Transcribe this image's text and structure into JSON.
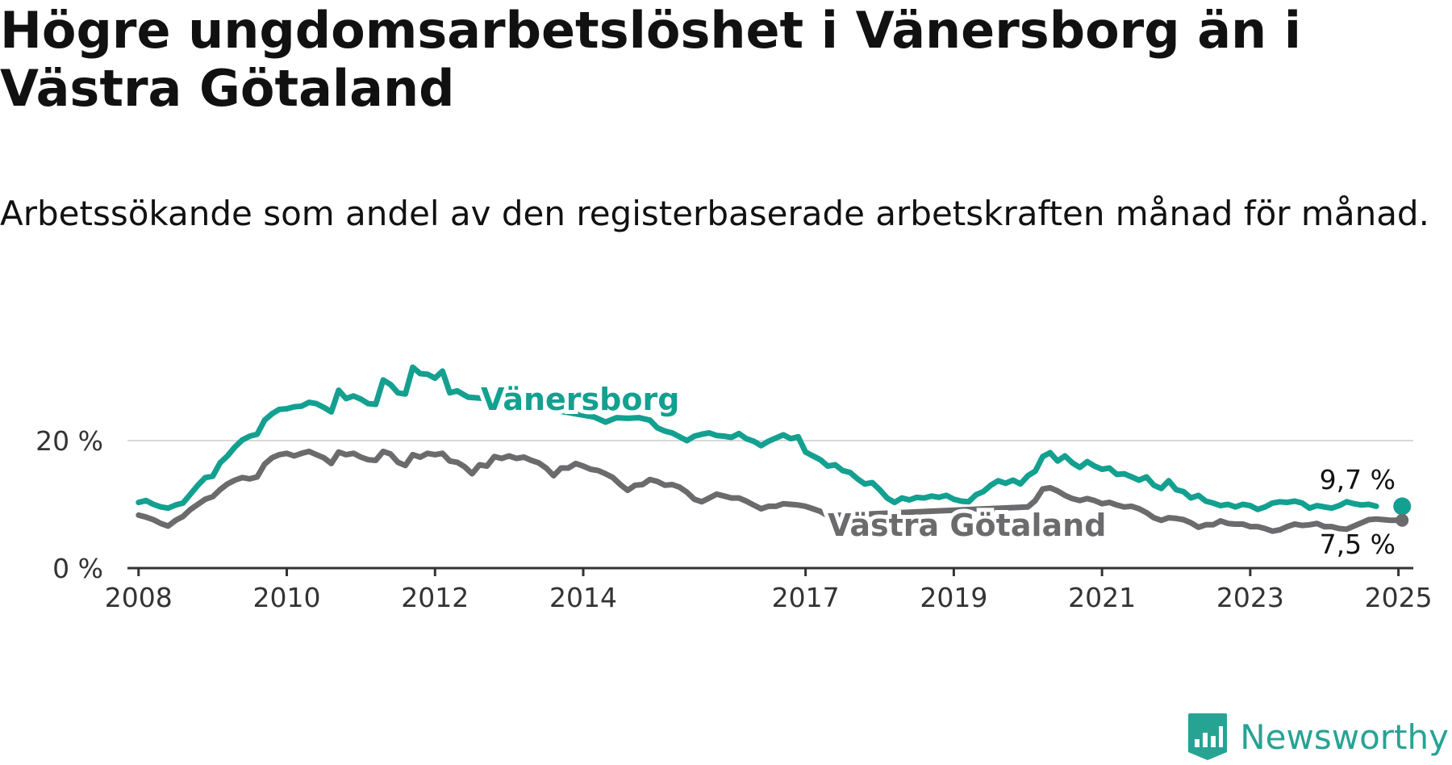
{
  "header": {
    "title": "Högre ungdomsarbetslöshet i Vänersborg än i Västra Götaland",
    "subtitle": "Arbetssökande som andel av den registerbaserade arbetskraften månad för månad."
  },
  "brand": {
    "name": "Newsworthy",
    "icon": "bar-chart-logo-icon",
    "color": "#27a394"
  },
  "chart_data": {
    "type": "line",
    "x_axis": {
      "ticks": [
        "2008",
        "2010",
        "2012",
        "2014",
        "2017",
        "2019",
        "2021",
        "2023",
        "2025"
      ],
      "range": [
        2007.85,
        2025.2
      ]
    },
    "y_axis": {
      "ticks": [
        "0 %",
        "20 %"
      ],
      "tick_values": [
        0,
        20
      ],
      "ylim": [
        0,
        33
      ],
      "grid": true
    },
    "series": [
      {
        "name": "Vänersborg",
        "color": "#13a090",
        "end_label": "9,7 %",
        "points": [
          [
            2008.0,
            10.3
          ],
          [
            2008.1,
            10.6
          ],
          [
            2008.2,
            10.0
          ],
          [
            2008.3,
            9.6
          ],
          [
            2008.4,
            9.4
          ],
          [
            2008.5,
            9.9
          ],
          [
            2008.6,
            10.2
          ],
          [
            2008.7,
            11.6
          ],
          [
            2008.8,
            13.0
          ],
          [
            2008.9,
            14.2
          ],
          [
            2009.0,
            14.4
          ],
          [
            2009.1,
            16.5
          ],
          [
            2009.2,
            17.6
          ],
          [
            2009.3,
            19.0
          ],
          [
            2009.4,
            20.1
          ],
          [
            2009.5,
            20.7
          ],
          [
            2009.6,
            21.0
          ],
          [
            2009.7,
            23.2
          ],
          [
            2009.8,
            24.2
          ],
          [
            2009.9,
            24.9
          ],
          [
            2010.0,
            25.0
          ],
          [
            2010.1,
            25.3
          ],
          [
            2010.2,
            25.4
          ],
          [
            2010.3,
            26.0
          ],
          [
            2010.4,
            25.8
          ],
          [
            2010.5,
            25.2
          ],
          [
            2010.6,
            24.5
          ],
          [
            2010.7,
            27.9
          ],
          [
            2010.8,
            26.6
          ],
          [
            2010.9,
            27.0
          ],
          [
            2011.0,
            26.5
          ],
          [
            2011.1,
            25.8
          ],
          [
            2011.2,
            25.7
          ],
          [
            2011.3,
            29.5
          ],
          [
            2011.4,
            28.8
          ],
          [
            2011.5,
            27.5
          ],
          [
            2011.6,
            27.3
          ],
          [
            2011.7,
            31.5
          ],
          [
            2011.8,
            30.5
          ],
          [
            2011.9,
            30.4
          ],
          [
            2012.0,
            29.8
          ],
          [
            2012.1,
            30.9
          ],
          [
            2012.2,
            27.5
          ],
          [
            2012.3,
            27.8
          ],
          [
            2012.45,
            26.8
          ],
          [
            2012.8,
            26.5
          ],
          [
            2013.5,
            25.0
          ],
          [
            2014.0,
            24.0
          ],
          [
            2014.15,
            23.7
          ],
          [
            2014.3,
            22.9
          ],
          [
            2014.45,
            23.6
          ],
          [
            2014.6,
            23.5
          ],
          [
            2014.75,
            23.6
          ],
          [
            2014.9,
            23.2
          ],
          [
            2015.0,
            22.0
          ],
          [
            2015.1,
            21.5
          ],
          [
            2015.2,
            21.2
          ],
          [
            2015.3,
            20.6
          ],
          [
            2015.4,
            20.0
          ],
          [
            2015.5,
            20.7
          ],
          [
            2015.6,
            21.0
          ],
          [
            2015.7,
            21.2
          ],
          [
            2015.8,
            20.8
          ],
          [
            2015.9,
            20.7
          ],
          [
            2016.0,
            20.5
          ],
          [
            2016.1,
            21.1
          ],
          [
            2016.2,
            20.3
          ],
          [
            2016.3,
            19.9
          ],
          [
            2016.4,
            19.2
          ],
          [
            2016.5,
            19.9
          ],
          [
            2016.6,
            20.4
          ],
          [
            2016.7,
            20.9
          ],
          [
            2016.8,
            20.3
          ],
          [
            2016.9,
            20.6
          ],
          [
            2017.0,
            18.2
          ],
          [
            2017.1,
            17.6
          ],
          [
            2017.2,
            17.0
          ],
          [
            2017.3,
            16.0
          ],
          [
            2017.4,
            16.2
          ],
          [
            2017.5,
            15.3
          ],
          [
            2017.6,
            15.0
          ],
          [
            2017.7,
            14.0
          ],
          [
            2017.8,
            13.2
          ],
          [
            2017.9,
            13.4
          ],
          [
            2018.0,
            12.3
          ],
          [
            2018.1,
            11.0
          ],
          [
            2018.2,
            10.3
          ],
          [
            2018.3,
            11.0
          ],
          [
            2018.4,
            10.7
          ],
          [
            2018.5,
            11.1
          ],
          [
            2018.6,
            11.0
          ],
          [
            2018.7,
            11.3
          ],
          [
            2018.8,
            11.1
          ],
          [
            2018.9,
            11.4
          ],
          [
            2019.0,
            10.8
          ],
          [
            2019.1,
            10.5
          ],
          [
            2019.2,
            10.4
          ],
          [
            2019.3,
            11.5
          ],
          [
            2019.4,
            12.0
          ],
          [
            2019.5,
            13.0
          ],
          [
            2019.6,
            13.7
          ],
          [
            2019.7,
            13.3
          ],
          [
            2019.8,
            13.8
          ],
          [
            2019.9,
            13.2
          ],
          [
            2020.0,
            14.5
          ],
          [
            2020.1,
            15.2
          ],
          [
            2020.2,
            17.5
          ],
          [
            2020.3,
            18.1
          ],
          [
            2020.4,
            16.8
          ],
          [
            2020.5,
            17.6
          ],
          [
            2020.6,
            16.5
          ],
          [
            2020.7,
            15.8
          ],
          [
            2020.8,
            16.7
          ],
          [
            2020.9,
            16.0
          ],
          [
            2021.0,
            15.5
          ],
          [
            2021.1,
            15.7
          ],
          [
            2021.2,
            14.7
          ],
          [
            2021.3,
            14.8
          ],
          [
            2021.4,
            14.3
          ],
          [
            2021.5,
            13.8
          ],
          [
            2021.6,
            14.3
          ],
          [
            2021.7,
            13.0
          ],
          [
            2021.8,
            12.5
          ],
          [
            2021.9,
            13.7
          ],
          [
            2022.0,
            12.3
          ],
          [
            2022.1,
            12.0
          ],
          [
            2022.2,
            11.0
          ],
          [
            2022.3,
            11.4
          ],
          [
            2022.4,
            10.5
          ],
          [
            2022.5,
            10.2
          ],
          [
            2022.6,
            9.8
          ],
          [
            2022.7,
            10.0
          ],
          [
            2022.8,
            9.6
          ],
          [
            2022.9,
            10.0
          ],
          [
            2023.0,
            9.8
          ],
          [
            2023.1,
            9.2
          ],
          [
            2023.2,
            9.6
          ],
          [
            2023.3,
            10.2
          ],
          [
            2023.4,
            10.4
          ],
          [
            2023.5,
            10.3
          ],
          [
            2023.6,
            10.5
          ],
          [
            2023.7,
            10.2
          ],
          [
            2023.8,
            9.4
          ],
          [
            2023.9,
            9.8
          ],
          [
            2024.0,
            9.6
          ],
          [
            2024.1,
            9.4
          ],
          [
            2024.2,
            9.8
          ],
          [
            2024.3,
            10.4
          ],
          [
            2024.4,
            10.1
          ],
          [
            2024.5,
            9.9
          ],
          [
            2024.6,
            10.0
          ],
          [
            2024.7,
            9.7
          ]
        ]
      },
      {
        "name": "Västra Götaland",
        "color": "#6b6b6d",
        "end_label": "7,5 %",
        "points": [
          [
            2008.0,
            8.3
          ],
          [
            2008.1,
            8.0
          ],
          [
            2008.2,
            7.6
          ],
          [
            2008.3,
            7.0
          ],
          [
            2008.4,
            6.6
          ],
          [
            2008.5,
            7.5
          ],
          [
            2008.6,
            8.1
          ],
          [
            2008.7,
            9.2
          ],
          [
            2008.8,
            10.0
          ],
          [
            2008.9,
            10.8
          ],
          [
            2009.0,
            11.2
          ],
          [
            2009.1,
            12.3
          ],
          [
            2009.2,
            13.2
          ],
          [
            2009.3,
            13.8
          ],
          [
            2009.4,
            14.2
          ],
          [
            2009.5,
            14.0
          ],
          [
            2009.6,
            14.3
          ],
          [
            2009.7,
            16.3
          ],
          [
            2009.8,
            17.3
          ],
          [
            2009.9,
            17.8
          ],
          [
            2010.0,
            18.0
          ],
          [
            2010.1,
            17.6
          ],
          [
            2010.2,
            18.0
          ],
          [
            2010.3,
            18.3
          ],
          [
            2010.4,
            17.8
          ],
          [
            2010.5,
            17.3
          ],
          [
            2010.6,
            16.4
          ],
          [
            2010.7,
            18.2
          ],
          [
            2010.8,
            17.8
          ],
          [
            2010.9,
            18.0
          ],
          [
            2011.0,
            17.4
          ],
          [
            2011.1,
            17.0
          ],
          [
            2011.2,
            16.9
          ],
          [
            2011.3,
            18.3
          ],
          [
            2011.4,
            17.9
          ],
          [
            2011.5,
            16.6
          ],
          [
            2011.6,
            16.1
          ],
          [
            2011.7,
            17.8
          ],
          [
            2011.8,
            17.4
          ],
          [
            2011.9,
            18.0
          ],
          [
            2012.0,
            17.8
          ],
          [
            2012.1,
            18.0
          ],
          [
            2012.2,
            16.8
          ],
          [
            2012.3,
            16.6
          ],
          [
            2012.4,
            15.9
          ],
          [
            2012.5,
            14.8
          ],
          [
            2012.6,
            16.2
          ],
          [
            2012.7,
            16.0
          ],
          [
            2012.8,
            17.5
          ],
          [
            2012.9,
            17.2
          ],
          [
            2013.0,
            17.6
          ],
          [
            2013.1,
            17.2
          ],
          [
            2013.2,
            17.4
          ],
          [
            2013.3,
            16.9
          ],
          [
            2013.4,
            16.5
          ],
          [
            2013.5,
            15.7
          ],
          [
            2013.6,
            14.5
          ],
          [
            2013.7,
            15.7
          ],
          [
            2013.8,
            15.7
          ],
          [
            2013.9,
            16.4
          ],
          [
            2014.0,
            16.0
          ],
          [
            2014.1,
            15.5
          ],
          [
            2014.2,
            15.3
          ],
          [
            2014.3,
            14.8
          ],
          [
            2014.4,
            14.2
          ],
          [
            2014.5,
            13.1
          ],
          [
            2014.6,
            12.2
          ],
          [
            2014.7,
            13.0
          ],
          [
            2014.8,
            13.1
          ],
          [
            2014.9,
            13.9
          ],
          [
            2015.0,
            13.6
          ],
          [
            2015.1,
            13.0
          ],
          [
            2015.2,
            13.1
          ],
          [
            2015.3,
            12.7
          ],
          [
            2015.4,
            11.9
          ],
          [
            2015.5,
            10.8
          ],
          [
            2015.6,
            10.4
          ],
          [
            2015.7,
            11.0
          ],
          [
            2015.8,
            11.6
          ],
          [
            2015.9,
            11.3
          ],
          [
            2016.0,
            11.0
          ],
          [
            2016.1,
            11.0
          ],
          [
            2016.2,
            10.5
          ],
          [
            2016.3,
            9.9
          ],
          [
            2016.4,
            9.3
          ],
          [
            2016.5,
            9.7
          ],
          [
            2016.6,
            9.7
          ],
          [
            2016.7,
            10.1
          ],
          [
            2016.8,
            10.0
          ],
          [
            2016.9,
            9.9
          ],
          [
            2017.0,
            9.7
          ],
          [
            2017.1,
            9.3
          ],
          [
            2017.2,
            8.9
          ],
          [
            2017.3,
            8.2
          ],
          [
            2020.0,
            9.6
          ],
          [
            2020.1,
            10.6
          ],
          [
            2020.2,
            12.4
          ],
          [
            2020.3,
            12.6
          ],
          [
            2020.4,
            12.1
          ],
          [
            2020.5,
            11.4
          ],
          [
            2020.6,
            10.9
          ],
          [
            2020.7,
            10.6
          ],
          [
            2020.8,
            10.9
          ],
          [
            2020.9,
            10.6
          ],
          [
            2021.0,
            10.1
          ],
          [
            2021.1,
            10.3
          ],
          [
            2021.2,
            9.9
          ],
          [
            2021.3,
            9.6
          ],
          [
            2021.4,
            9.7
          ],
          [
            2021.5,
            9.3
          ],
          [
            2021.6,
            8.7
          ],
          [
            2021.7,
            7.9
          ],
          [
            2021.8,
            7.5
          ],
          [
            2021.9,
            7.9
          ],
          [
            2022.0,
            7.8
          ],
          [
            2022.1,
            7.6
          ],
          [
            2022.2,
            7.1
          ],
          [
            2022.3,
            6.4
          ],
          [
            2022.4,
            6.8
          ],
          [
            2022.5,
            6.8
          ],
          [
            2022.6,
            7.4
          ],
          [
            2022.7,
            7.0
          ],
          [
            2022.8,
            6.9
          ],
          [
            2022.9,
            6.9
          ],
          [
            2023.0,
            6.5
          ],
          [
            2023.1,
            6.5
          ],
          [
            2023.2,
            6.2
          ],
          [
            2023.3,
            5.8
          ],
          [
            2023.4,
            6.0
          ],
          [
            2023.5,
            6.5
          ],
          [
            2023.6,
            6.9
          ],
          [
            2023.7,
            6.7
          ],
          [
            2023.8,
            6.8
          ],
          [
            2023.9,
            7.0
          ],
          [
            2024.0,
            6.5
          ],
          [
            2024.1,
            6.5
          ],
          [
            2024.2,
            6.2
          ],
          [
            2024.3,
            6.1
          ],
          [
            2024.4,
            6.6
          ],
          [
            2024.5,
            7.1
          ],
          [
            2024.6,
            7.6
          ],
          [
            2024.7,
            7.7
          ],
          [
            2024.8,
            7.6
          ],
          [
            2024.9,
            7.5
          ],
          [
            2025.0,
            7.5
          ],
          [
            2025.05,
            7.5
          ]
        ]
      }
    ]
  }
}
